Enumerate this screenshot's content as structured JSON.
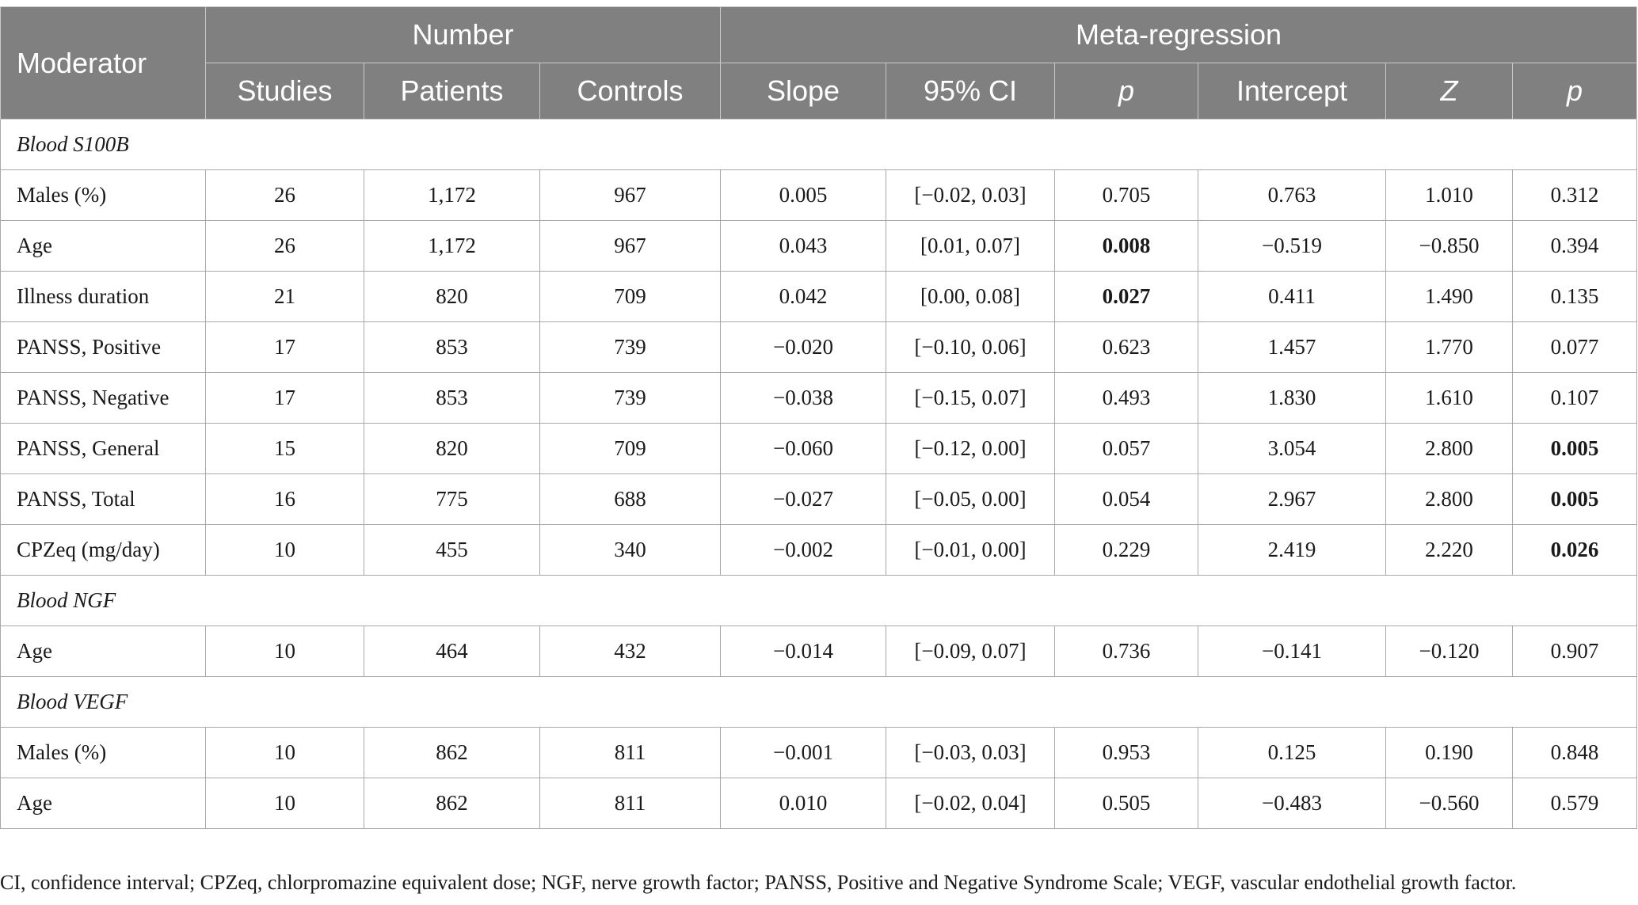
{
  "header": {
    "moderator": "Moderator",
    "number": "Number",
    "meta_regression": "Meta-regression",
    "studies": "Studies",
    "patients": "Patients",
    "controls": "Controls",
    "slope": "Slope",
    "ci": "95% CI",
    "p1": "p",
    "intercept": "Intercept",
    "z": "Z",
    "p2": "p"
  },
  "sections": {
    "s100b": "Blood S100B",
    "ngf": "Blood NGF",
    "vegf": "Blood VEGF"
  },
  "rows": [
    {
      "moderator": "Males (%)",
      "studies": "26",
      "patients": "1,172",
      "controls": "967",
      "slope": "0.005",
      "ci": "[−0.02, 0.03]",
      "p1": "0.705",
      "intercept": "0.763",
      "z": "1.010",
      "p2": "0.312"
    },
    {
      "moderator": "Age",
      "studies": "26",
      "patients": "1,172",
      "controls": "967",
      "slope": "0.043",
      "ci": "[0.01, 0.07]",
      "p1": "0.008",
      "intercept": "−0.519",
      "z": "−0.850",
      "p2": "0.394"
    },
    {
      "moderator": "Illness duration",
      "studies": "21",
      "patients": "820",
      "controls": "709",
      "slope": "0.042",
      "ci": "[0.00, 0.08]",
      "p1": "0.027",
      "intercept": "0.411",
      "z": "1.490",
      "p2": "0.135"
    },
    {
      "moderator": "PANSS, Positive",
      "studies": "17",
      "patients": "853",
      "controls": "739",
      "slope": "−0.020",
      "ci": "[−0.10, 0.06]",
      "p1": "0.623",
      "intercept": "1.457",
      "z": "1.770",
      "p2": "0.077"
    },
    {
      "moderator": "PANSS, Negative",
      "studies": "17",
      "patients": "853",
      "controls": "739",
      "slope": "−0.038",
      "ci": "[−0.15, 0.07]",
      "p1": "0.493",
      "intercept": "1.830",
      "z": "1.610",
      "p2": "0.107"
    },
    {
      "moderator": "PANSS, General",
      "studies": "15",
      "patients": "820",
      "controls": "709",
      "slope": "−0.060",
      "ci": "[−0.12, 0.00]",
      "p1": "0.057",
      "intercept": "3.054",
      "z": "2.800",
      "p2": "0.005"
    },
    {
      "moderator": "PANSS, Total",
      "studies": "16",
      "patients": "775",
      "controls": "688",
      "slope": "−0.027",
      "ci": "[−0.05, 0.00]",
      "p1": "0.054",
      "intercept": "2.967",
      "z": "2.800",
      "p2": "0.005"
    },
    {
      "moderator": "CPZeq (mg/day)",
      "studies": "10",
      "patients": "455",
      "controls": "340",
      "slope": "−0.002",
      "ci": "[−0.01, 0.00]",
      "p1": "0.229",
      "intercept": "2.419",
      "z": "2.220",
      "p2": "0.026"
    },
    {
      "moderator": "Age",
      "studies": "10",
      "patients": "464",
      "controls": "432",
      "slope": "−0.014",
      "ci": "[−0.09, 0.07]",
      "p1": "0.736",
      "intercept": "−0.141",
      "z": "−0.120",
      "p2": "0.907"
    },
    {
      "moderator": "Males (%)",
      "studies": "10",
      "patients": "862",
      "controls": "811",
      "slope": "−0.001",
      "ci": "[−0.03, 0.03]",
      "p1": "0.953",
      "intercept": "0.125",
      "z": "0.190",
      "p2": "0.848"
    },
    {
      "moderator": "Age",
      "studies": "10",
      "patients": "862",
      "controls": "811",
      "slope": "0.010",
      "ci": "[−0.02, 0.04]",
      "p1": "0.505",
      "intercept": "−0.483",
      "z": "−0.560",
      "p2": "0.579"
    }
  ],
  "footnote": "CI, confidence interval; CPZeq, chlorpromazine equivalent dose; NGF, nerve growth factor; PANSS, Positive and Negative Syndrome Scale; VEGF, vascular endothelial growth factor."
}
